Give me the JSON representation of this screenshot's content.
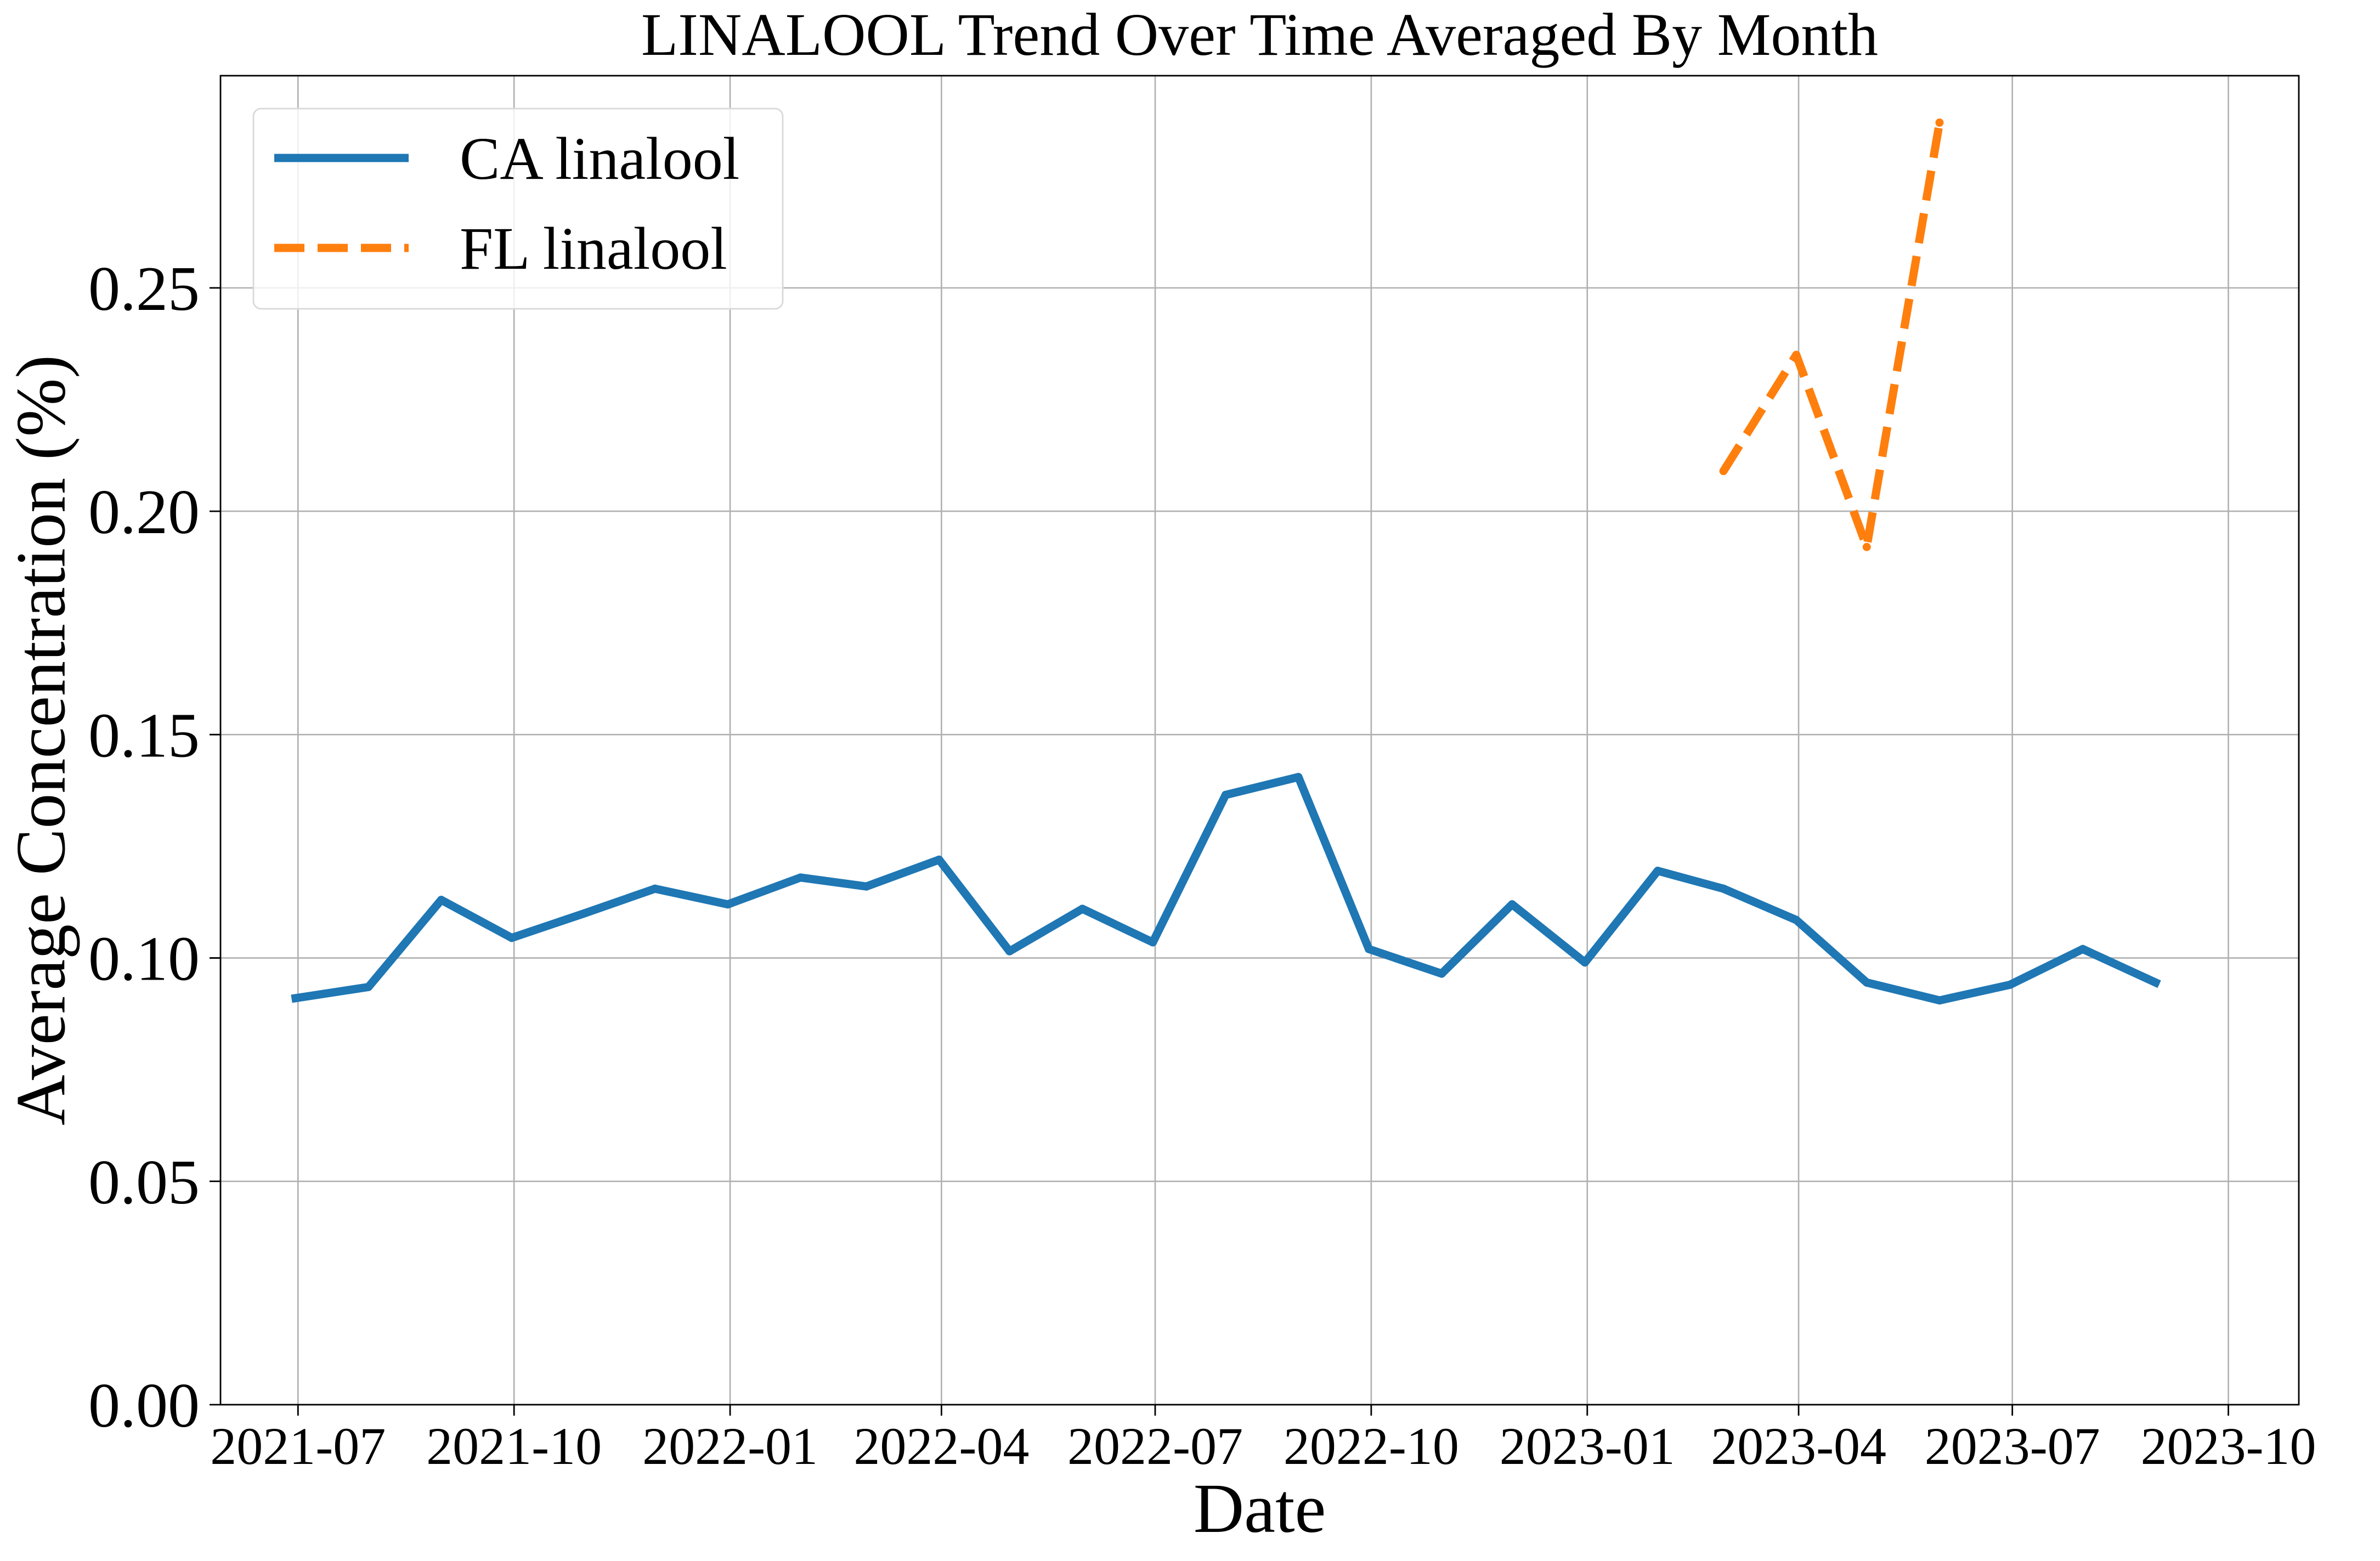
{
  "chart_data": {
    "type": "line",
    "title": "LINALOOL Trend Over Time Averaged By Month",
    "xlabel": "Date",
    "ylabel": "Average Concentration (%)",
    "x_ticks": [
      "2021-07",
      "2021-10",
      "2022-01",
      "2022-04",
      "2022-07",
      "2022-10",
      "2023-01",
      "2023-04",
      "2023-07",
      "2023-10"
    ],
    "y_ticks": [
      "0.00",
      "0.05",
      "0.10",
      "0.15",
      "0.20",
      "0.25"
    ],
    "xlim": [
      "2021-05-29",
      "2023-10-31"
    ],
    "ylim": [
      0,
      0.2975
    ],
    "grid": true,
    "legend_position": "upper left",
    "series": [
      {
        "name": "CA linalool",
        "color": "#1f77b4",
        "line_style": "solid",
        "x": [
          "2021-06-30",
          "2021-07-31",
          "2021-08-31",
          "2021-09-30",
          "2021-10-31",
          "2021-11-30",
          "2021-12-31",
          "2022-01-31",
          "2022-02-28",
          "2022-03-31",
          "2022-04-30",
          "2022-05-31",
          "2022-06-30",
          "2022-07-31",
          "2022-08-31",
          "2022-09-30",
          "2022-10-31",
          "2022-11-30",
          "2022-12-31",
          "2023-01-31",
          "2023-02-28",
          "2023-03-31",
          "2023-04-30",
          "2023-05-31",
          "2023-06-30",
          "2023-07-31",
          "2023-08-31"
        ],
        "y": [
          0.091,
          0.0935,
          0.113,
          0.1045,
          0.11,
          0.1155,
          0.112,
          0.118,
          0.116,
          0.122,
          0.1015,
          0.111,
          0.1035,
          0.1365,
          0.1405,
          0.102,
          0.0965,
          0.112,
          0.099,
          0.1195,
          0.1155,
          0.1085,
          0.0945,
          0.0905,
          0.094,
          0.102,
          0.0945
        ]
      },
      {
        "name": "FL linalool",
        "color": "#ff7f0e",
        "line_style": "dashed",
        "x": [
          "2023-02-28",
          "2023-03-31",
          "2023-04-30",
          "2023-05-31"
        ],
        "y": [
          0.209,
          0.235,
          0.192,
          0.287
        ]
      }
    ]
  }
}
